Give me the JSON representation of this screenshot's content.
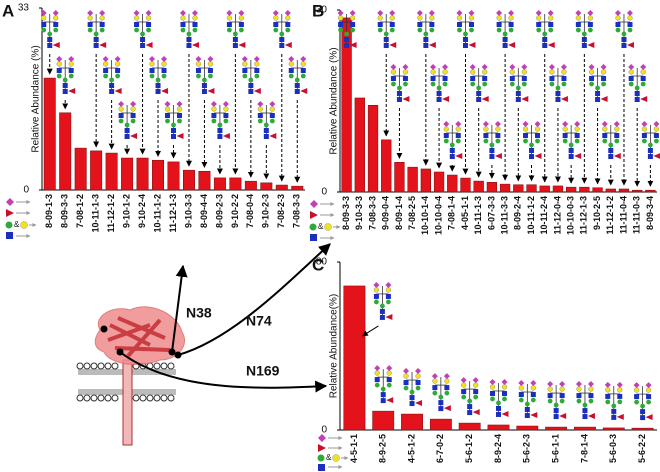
{
  "chart_data": [
    {
      "type": "bar",
      "panel_label": "A",
      "y_label": "Relative Abundance (%)",
      "color": "#e3121b",
      "categories": [
        "8-09-1-3",
        "8-09-3-3",
        "7-08-1-2",
        "10-11-1-3",
        "11-12-1-2",
        "9-10-1-2",
        "9-10-2-4",
        "10-11-1-2",
        "11-12-1-3",
        "9-10-3-3",
        "8-09-4-4",
        "8-09-2-3",
        "9-10-2-2",
        "7-08-0-4",
        "9-10-2-3",
        "7-08-2-3",
        "7-08-3-3"
      ],
      "values": [
        20.3,
        14.0,
        7.6,
        7.1,
        6.7,
        5.8,
        5.8,
        5.4,
        5.1,
        3.6,
        3.4,
        2.2,
        2.2,
        1.6,
        1.3,
        0.9,
        0.7
      ],
      "ylim": [
        0,
        33
      ],
      "yticks": [
        0,
        33
      ]
    },
    {
      "type": "bar",
      "panel_label": "B",
      "y_label": "Relative Abundance (%)",
      "color": "#e3121b",
      "categories": [
        "8-09-3-3",
        "9-10-3-3",
        "7-08-3-3",
        "9-09-0-4",
        "8-09-1-4",
        "7-08-2-5",
        "10-10-1-4",
        "10-10-0-4",
        "7-08-1-4",
        "4-05-1-1",
        "10-11-1-3",
        "6-07-3-3",
        "10-11-3-3",
        "8-09-2-4",
        "10-11-1-2",
        "10-11-2-4",
        "11-12-0-4",
        "10-10-0-3",
        "11-12-1-3",
        "9-10-2-5",
        "11-12-1-2",
        "11-11-0-4",
        "11-11-0-3",
        "8-09-3-4"
      ],
      "values": [
        28.7,
        15.5,
        14.3,
        8.6,
        4.9,
        4.1,
        3.8,
        3.3,
        2.8,
        2.3,
        1.8,
        1.6,
        1.3,
        1.2,
        1.2,
        1.0,
        1.0,
        0.8,
        0.8,
        0.7,
        0.5,
        0.5,
        0.3,
        0.3
      ],
      "ylim": [
        0,
        30
      ],
      "yticks": [
        0,
        30
      ]
    },
    {
      "type": "bar",
      "panel_label": "C",
      "y_label": "Relative Abundance(%)",
      "color": "#e3121b",
      "categories": [
        "4-5-1-1",
        "8-9-2-5",
        "4-5-1-2",
        "6-7-0-2",
        "5-6-1-2",
        "8-9-2-4",
        "5-6-2-3",
        "5-6-1-1",
        "7-8-1-4",
        "5-6-0-3",
        "5-6-2-2"
      ],
      "values": [
        68.6,
        9.0,
        7.6,
        5.2,
        3.3,
        2.4,
        1.9,
        1.4,
        1.4,
        1.0,
        0.9
      ],
      "ylim": [
        0,
        80
      ],
      "yticks": [
        0,
        80
      ]
    }
  ],
  "site_labels": [
    "N38",
    "N74",
    "N169"
  ],
  "key_text": "&"
}
